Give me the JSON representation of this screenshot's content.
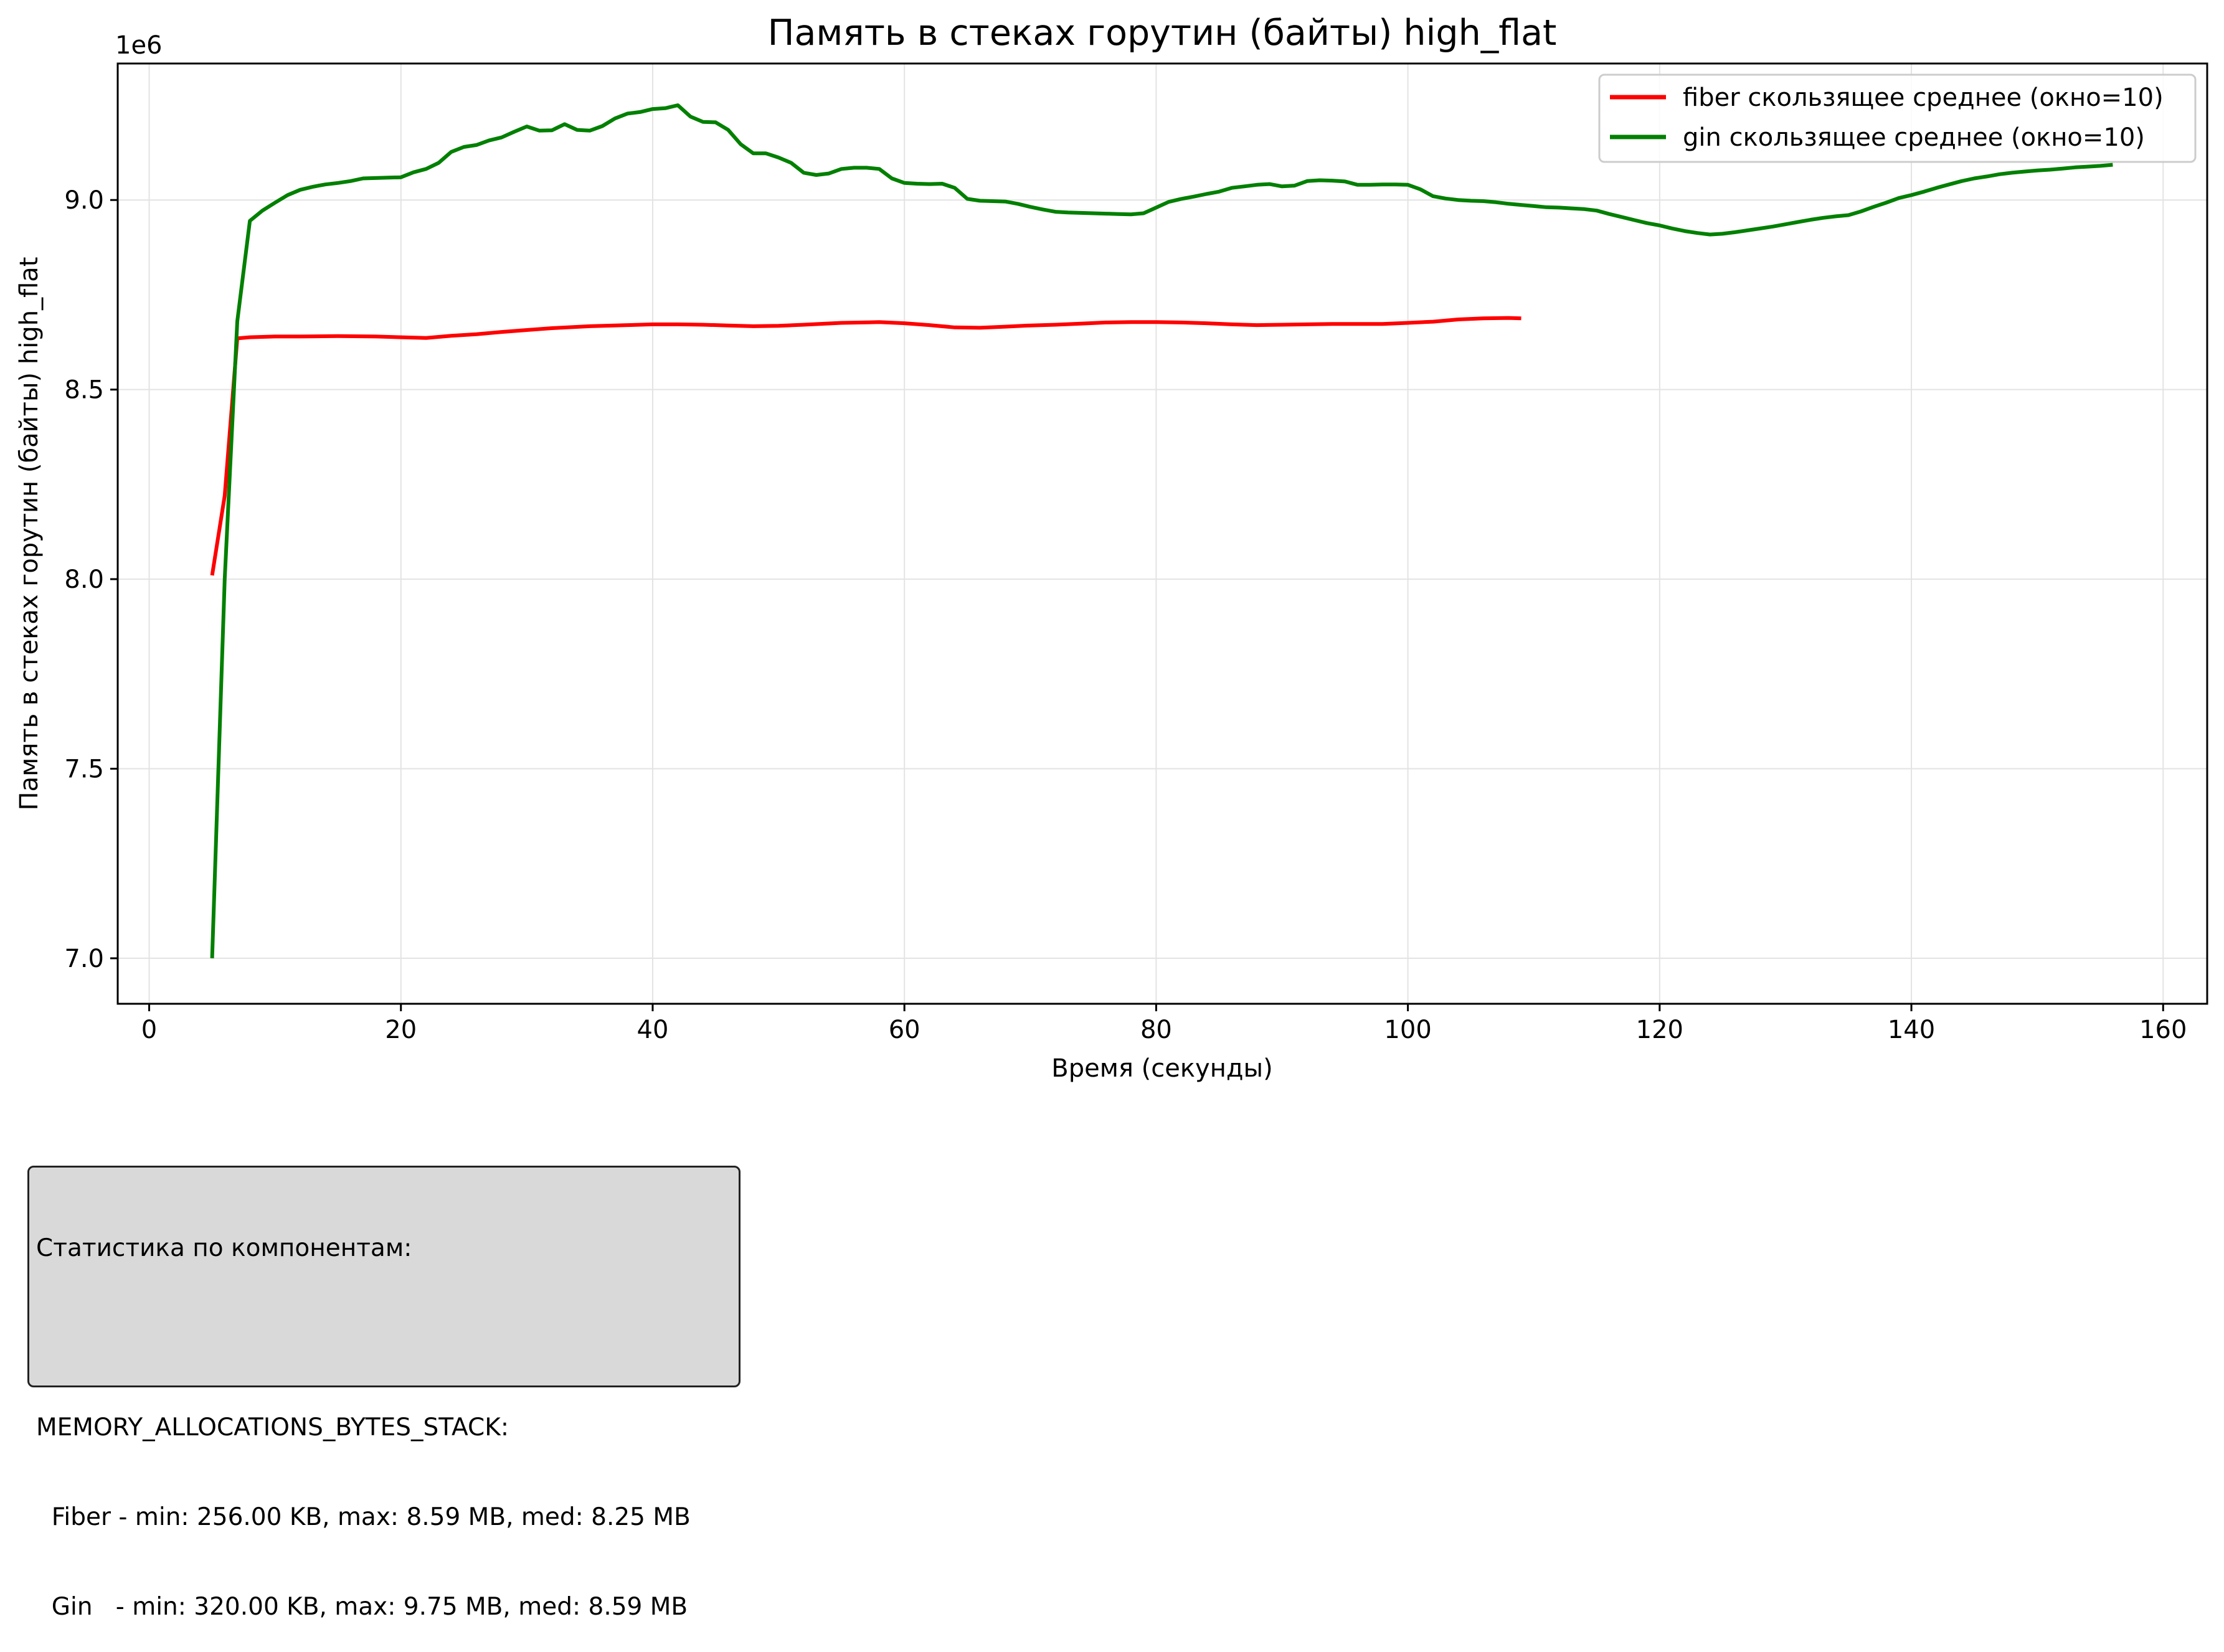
{
  "chart_data": {
    "type": "line",
    "title": "Память в стеках горутин (байты) high_flat",
    "xlabel": "Время (секунды)",
    "ylabel": "Память в стеках горутин (байты) high_flat",
    "y_offset_label": "1e6",
    "xlim": [
      -2.5,
      163.5
    ],
    "ylim": [
      6880000.0,
      9360000.0
    ],
    "xticks": [
      0,
      20,
      40,
      60,
      80,
      100,
      120,
      140,
      160
    ],
    "xtick_labels": [
      "0",
      "20",
      "40",
      "60",
      "80",
      "100",
      "120",
      "140",
      "160"
    ],
    "yticks": [
      7000000.0,
      7500000.0,
      8000000.0,
      8500000.0,
      9000000.0
    ],
    "ytick_labels": [
      "7.0",
      "7.5",
      "8.0",
      "8.5",
      "9.0"
    ],
    "grid": true,
    "legend_position": "top-right",
    "series": [
      {
        "name": "fiber скользящее среднее (окно=10)",
        "color": "#ff0000",
        "points": [
          [
            5,
            8010000.0
          ],
          [
            6,
            8220000.0
          ],
          [
            7,
            8635000.0
          ],
          [
            8,
            8638000.0
          ],
          [
            10,
            8640000.0
          ],
          [
            12,
            8640000.0
          ],
          [
            15,
            8641000.0
          ],
          [
            18,
            8640000.0
          ],
          [
            20,
            8638000.0
          ],
          [
            22,
            8636000.0
          ],
          [
            24,
            8642000.0
          ],
          [
            26,
            8646000.0
          ],
          [
            28,
            8652000.0
          ],
          [
            30,
            8657000.0
          ],
          [
            32,
            8662000.0
          ],
          [
            35,
            8667000.0
          ],
          [
            38,
            8670000.0
          ],
          [
            40,
            8672000.0
          ],
          [
            42,
            8672000.0
          ],
          [
            44,
            8671000.0
          ],
          [
            46,
            8669000.0
          ],
          [
            48,
            8667000.0
          ],
          [
            50,
            8668000.0
          ],
          [
            52,
            8671000.0
          ],
          [
            55,
            8676000.0
          ],
          [
            58,
            8678000.0
          ],
          [
            60,
            8675000.0
          ],
          [
            62,
            8670000.0
          ],
          [
            64,
            8664000.0
          ],
          [
            66,
            8663000.0
          ],
          [
            68,
            8666000.0
          ],
          [
            70,
            8669000.0
          ],
          [
            72,
            8671000.0
          ],
          [
            74,
            8674000.0
          ],
          [
            76,
            8677000.0
          ],
          [
            78,
            8678000.0
          ],
          [
            80,
            8678000.0
          ],
          [
            82,
            8677000.0
          ],
          [
            84,
            8675000.0
          ],
          [
            86,
            8672000.0
          ],
          [
            88,
            8670000.0
          ],
          [
            90,
            8671000.0
          ],
          [
            92,
            8672000.0
          ],
          [
            94,
            8673000.0
          ],
          [
            96,
            8673000.0
          ],
          [
            98,
            8673000.0
          ],
          [
            100,
            8676000.0
          ],
          [
            102,
            8679000.0
          ],
          [
            104,
            8685000.0
          ],
          [
            106,
            8688000.0
          ],
          [
            108,
            8689000.0
          ],
          [
            109,
            8688000.0
          ]
        ]
      },
      {
        "name": "gin скользящее среднее (окно=10)",
        "color": "#008000",
        "points": [
          [
            5,
            7000000.0
          ],
          [
            6,
            8000000.0
          ],
          [
            7,
            8680000.0
          ],
          [
            8,
            8945000.0
          ],
          [
            9,
            8972000.0
          ],
          [
            10,
            8993000.0
          ],
          [
            11,
            9013000.0
          ],
          [
            12,
            9027000.0
          ],
          [
            13,
            9035000.0
          ],
          [
            14,
            9041000.0
          ],
          [
            15,
            9045000.0
          ],
          [
            16,
            9050000.0
          ],
          [
            17,
            9057000.0
          ],
          [
            18,
            9058000.0
          ],
          [
            19,
            9059000.0
          ],
          [
            20,
            9060000.0
          ],
          [
            21,
            9073000.0
          ],
          [
            22,
            9082000.0
          ],
          [
            23,
            9098000.0
          ],
          [
            24,
            9127000.0
          ],
          [
            25,
            9140000.0
          ],
          [
            26,
            9145000.0
          ],
          [
            27,
            9157000.0
          ],
          [
            28,
            9165000.0
          ],
          [
            29,
            9180000.0
          ],
          [
            30,
            9194000.0
          ],
          [
            31,
            9183000.0
          ],
          [
            32,
            9184000.0
          ],
          [
            33,
            9200000.0
          ],
          [
            34,
            9185000.0
          ],
          [
            35,
            9183000.0
          ],
          [
            36,
            9195000.0
          ],
          [
            37,
            9215000.0
          ],
          [
            38,
            9228000.0
          ],
          [
            39,
            9232000.0
          ],
          [
            40,
            9240000.0
          ],
          [
            41,
            9242000.0
          ],
          [
            42,
            9250000.0
          ],
          [
            43,
            9220000.0
          ],
          [
            44,
            9206000.0
          ],
          [
            45,
            9205000.0
          ],
          [
            46,
            9185000.0
          ],
          [
            47,
            9147000.0
          ],
          [
            48,
            9123000.0
          ],
          [
            49,
            9123000.0
          ],
          [
            50,
            9112000.0
          ],
          [
            51,
            9098000.0
          ],
          [
            52,
            9072000.0
          ],
          [
            53,
            9066000.0
          ],
          [
            54,
            9070000.0
          ],
          [
            55,
            9082000.0
          ],
          [
            56,
            9085000.0
          ],
          [
            57,
            9085000.0
          ],
          [
            58,
            9082000.0
          ],
          [
            59,
            9057000.0
          ],
          [
            60,
            9045000.0
          ],
          [
            61,
            9043000.0
          ],
          [
            62,
            9042000.0
          ],
          [
            63,
            9043000.0
          ],
          [
            64,
            9032000.0
          ],
          [
            65,
            9003000.0
          ],
          [
            66,
            8998000.0
          ],
          [
            67,
            8997000.0
          ],
          [
            68,
            8996000.0
          ],
          [
            69,
            8990000.0
          ],
          [
            70,
            8982000.0
          ],
          [
            71,
            8975000.0
          ],
          [
            72,
            8969000.0
          ],
          [
            73,
            8967000.0
          ],
          [
            74,
            8966000.0
          ],
          [
            75,
            8965000.0
          ],
          [
            76,
            8964000.0
          ],
          [
            77,
            8963000.0
          ],
          [
            78,
            8962000.0
          ],
          [
            79,
            8965000.0
          ],
          [
            80,
            8980000.0
          ],
          [
            81,
            8995000.0
          ],
          [
            82,
            9003000.0
          ],
          [
            83,
            9009000.0
          ],
          [
            84,
            9016000.0
          ],
          [
            85,
            9022000.0
          ],
          [
            86,
            9032000.0
          ],
          [
            87,
            9036000.0
          ],
          [
            88,
            9040000.0
          ],
          [
            89,
            9042000.0
          ],
          [
            90,
            9036000.0
          ],
          [
            91,
            9038000.0
          ],
          [
            92,
            9050000.0
          ],
          [
            93,
            9052000.0
          ],
          [
            94,
            9051000.0
          ],
          [
            95,
            9049000.0
          ],
          [
            96,
            9040000.0
          ],
          [
            97,
            9040000.0
          ],
          [
            98,
            9041000.0
          ],
          [
            99,
            9041000.0
          ],
          [
            100,
            9040000.0
          ],
          [
            101,
            9028000.0
          ],
          [
            102,
            9010000.0
          ],
          [
            103,
            9004000.0
          ],
          [
            104,
            9000000.0
          ],
          [
            105,
            8998000.0
          ],
          [
            106,
            8997000.0
          ],
          [
            107,
            8994000.0
          ],
          [
            108,
            8990000.0
          ],
          [
            109,
            8987000.0
          ],
          [
            110,
            8984000.0
          ],
          [
            111,
            8981000.0
          ],
          [
            112,
            8980000.0
          ],
          [
            113,
            8978000.0
          ],
          [
            114,
            8976000.0
          ],
          [
            115,
            8972000.0
          ],
          [
            116,
            8963000.0
          ],
          [
            117,
            8955000.0
          ],
          [
            118,
            8947000.0
          ],
          [
            119,
            8939000.0
          ],
          [
            120,
            8933000.0
          ],
          [
            121,
            8925000.0
          ],
          [
            122,
            8918000.0
          ],
          [
            123,
            8913000.0
          ],
          [
            124,
            8909000.0
          ],
          [
            125,
            8911000.0
          ],
          [
            126,
            8915000.0
          ],
          [
            127,
            8920000.0
          ],
          [
            128,
            8925000.0
          ],
          [
            129,
            8930000.0
          ],
          [
            130,
            8936000.0
          ],
          [
            131,
            8942000.0
          ],
          [
            132,
            8948000.0
          ],
          [
            133,
            8953000.0
          ],
          [
            134,
            8957000.0
          ],
          [
            135,
            8960000.0
          ],
          [
            136,
            8970000.0
          ],
          [
            137,
            8982000.0
          ],
          [
            138,
            8993000.0
          ],
          [
            139,
            9005000.0
          ],
          [
            140,
            9013000.0
          ],
          [
            141,
            9022000.0
          ],
          [
            142,
            9032000.0
          ],
          [
            143,
            9041000.0
          ],
          [
            144,
            9050000.0
          ],
          [
            145,
            9057000.0
          ],
          [
            146,
            9062000.0
          ],
          [
            147,
            9068000.0
          ],
          [
            148,
            9072000.0
          ],
          [
            149,
            9075000.0
          ],
          [
            150,
            9078000.0
          ],
          [
            151,
            9080000.0
          ],
          [
            152,
            9083000.0
          ],
          [
            153,
            9086000.0
          ],
          [
            154,
            9088000.0
          ],
          [
            155,
            9090000.0
          ],
          [
            156,
            9093000.0
          ]
        ]
      }
    ]
  },
  "stats": {
    "lines": [
      "Статистика по компонентам:",
      "",
      "MEMORY_ALLOCATIONS_BYTES_STACK:",
      "  Fiber - min: 256.00 KB, max: 8.59 MB, med: 8.25 MB",
      "  Gin   - min: 320.00 KB, max: 9.75 MB, med: 8.59 MB"
    ]
  }
}
